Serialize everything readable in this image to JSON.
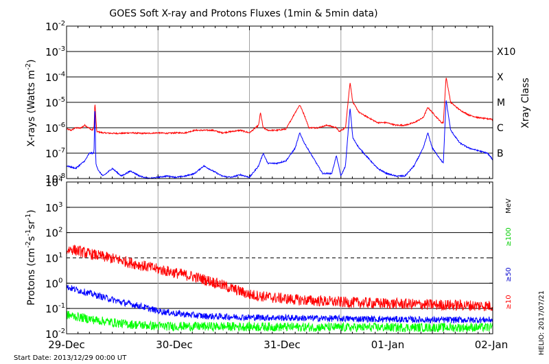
{
  "chart_data": [
    {
      "type": "line",
      "title": "GOES Soft X-ray and Protons Fluxes   (1min & 5min data)",
      "ylabel_main": "X-rays (Watts m",
      "ylabel_exp": "-2",
      "ylabel_close": ")",
      "yscale": "log",
      "ylim_exp": [
        -8,
        -2
      ],
      "yticks": [
        {
          "base": "10",
          "exp": "-8"
        },
        {
          "base": "10",
          "exp": "-7"
        },
        {
          "base": "10",
          "exp": "-6"
        },
        {
          "base": "10",
          "exp": "-5"
        },
        {
          "base": "10",
          "exp": "-4"
        },
        {
          "base": "10",
          "exp": "-3"
        },
        {
          "base": "10",
          "exp": "-2"
        }
      ],
      "right_axis_title": "Xray Class",
      "classes": [
        {
          "label": "B",
          "exp": -7
        },
        {
          "label": "C",
          "exp": -6
        },
        {
          "label": "M",
          "exp": -5
        },
        {
          "label": "X",
          "exp": -4
        },
        {
          "label": "X10",
          "exp": -3
        }
      ],
      "grid": "horizontal at each decade, vertical at day boundaries",
      "series": [
        {
          "color": "#ff0000",
          "points": [
            [
              0.0,
              -6.05
            ],
            [
              0.05,
              -6.1
            ],
            [
              0.1,
              -6.0
            ],
            [
              0.15,
              -6.02
            ],
            [
              0.2,
              -5.9
            ],
            [
              0.24,
              -6.0
            ],
            [
              0.28,
              -6.1
            ],
            [
              0.3,
              -6.0
            ],
            [
              0.31,
              -5.0
            ],
            [
              0.32,
              -5.6
            ],
            [
              0.33,
              -6.15
            ],
            [
              0.4,
              -6.2
            ],
            [
              0.5,
              -6.22
            ],
            [
              0.6,
              -6.22
            ],
            [
              0.7,
              -6.2
            ],
            [
              0.8,
              -6.22
            ],
            [
              0.9,
              -6.22
            ],
            [
              1.0,
              -6.2
            ],
            [
              1.1,
              -6.22
            ],
            [
              1.2,
              -6.2
            ],
            [
              1.3,
              -6.2
            ],
            [
              1.4,
              -6.1
            ],
            [
              1.5,
              -6.1
            ],
            [
              1.6,
              -6.1
            ],
            [
              1.7,
              -6.2
            ],
            [
              1.8,
              -6.15
            ],
            [
              1.9,
              -6.1
            ],
            [
              2.0,
              -6.2
            ],
            [
              2.1,
              -5.9
            ],
            [
              2.12,
              -5.4
            ],
            [
              2.15,
              -6.0
            ],
            [
              2.2,
              -6.1
            ],
            [
              2.3,
              -6.1
            ],
            [
              2.4,
              -6.05
            ],
            [
              2.5,
              -5.4
            ],
            [
              2.55,
              -5.1
            ],
            [
              2.6,
              -5.5
            ],
            [
              2.65,
              -6.0
            ],
            [
              2.75,
              -6.0
            ],
            [
              2.85,
              -5.9
            ],
            [
              2.95,
              -6.0
            ],
            [
              2.98,
              -6.15
            ],
            [
              3.05,
              -6.0
            ],
            [
              3.1,
              -4.2
            ],
            [
              3.13,
              -5.0
            ],
            [
              3.2,
              -5.4
            ],
            [
              3.3,
              -5.6
            ],
            [
              3.4,
              -5.8
            ],
            [
              3.5,
              -5.8
            ],
            [
              3.6,
              -5.9
            ],
            [
              3.7,
              -5.9
            ],
            [
              3.8,
              -5.8
            ],
            [
              3.9,
              -5.6
            ],
            [
              3.95,
              -5.2
            ],
            [
              4.0,
              -5.4
            ],
            [
              4.1,
              -5.8
            ],
            [
              4.12,
              -5.8
            ],
            [
              4.15,
              -4.0
            ],
            [
              4.2,
              -5.0
            ],
            [
              4.3,
              -5.3
            ],
            [
              4.4,
              -5.5
            ],
            [
              4.5,
              -5.6
            ],
            [
              4.6,
              -5.65
            ],
            [
              4.65,
              -5.65
            ],
            [
              4.66,
              -5.75
            ]
          ]
        },
        {
          "color": "#0000ff",
          "points": [
            [
              0.0,
              -7.5
            ],
            [
              0.1,
              -7.6
            ],
            [
              0.2,
              -7.3
            ],
            [
              0.25,
              -7.0
            ],
            [
              0.3,
              -7.0
            ],
            [
              0.31,
              -5.0
            ],
            [
              0.32,
              -7.4
            ],
            [
              0.35,
              -7.7
            ],
            [
              0.4,
              -7.9
            ],
            [
              0.5,
              -7.6
            ],
            [
              0.6,
              -7.9
            ],
            [
              0.7,
              -7.7
            ],
            [
              0.8,
              -7.9
            ],
            [
              0.9,
              -8.0
            ],
            [
              1.0,
              -7.95
            ],
            [
              1.1,
              -7.9
            ],
            [
              1.2,
              -7.95
            ],
            [
              1.3,
              -7.9
            ],
            [
              1.4,
              -7.8
            ],
            [
              1.5,
              -7.5
            ],
            [
              1.6,
              -7.7
            ],
            [
              1.7,
              -7.9
            ],
            [
              1.8,
              -7.95
            ],
            [
              1.9,
              -7.85
            ],
            [
              2.0,
              -7.95
            ],
            [
              2.1,
              -7.5
            ],
            [
              2.15,
              -7.0
            ],
            [
              2.2,
              -7.4
            ],
            [
              2.3,
              -7.4
            ],
            [
              2.4,
              -7.3
            ],
            [
              2.5,
              -6.8
            ],
            [
              2.55,
              -6.2
            ],
            [
              2.6,
              -6.6
            ],
            [
              2.7,
              -7.2
            ],
            [
              2.8,
              -7.8
            ],
            [
              2.9,
              -7.8
            ],
            [
              2.95,
              -7.1
            ],
            [
              3.0,
              -7.9
            ],
            [
              3.05,
              -7.5
            ],
            [
              3.1,
              -5.2
            ],
            [
              3.13,
              -6.4
            ],
            [
              3.2,
              -6.8
            ],
            [
              3.3,
              -7.2
            ],
            [
              3.4,
              -7.6
            ],
            [
              3.5,
              -7.8
            ],
            [
              3.6,
              -7.9
            ],
            [
              3.7,
              -7.9
            ],
            [
              3.8,
              -7.5
            ],
            [
              3.9,
              -6.8
            ],
            [
              3.95,
              -6.2
            ],
            [
              4.0,
              -6.8
            ],
            [
              4.1,
              -7.3
            ],
            [
              4.12,
              -7.4
            ],
            [
              4.15,
              -4.9
            ],
            [
              4.2,
              -6.1
            ],
            [
              4.3,
              -6.6
            ],
            [
              4.4,
              -6.8
            ],
            [
              4.5,
              -6.9
            ],
            [
              4.6,
              -7.0
            ],
            [
              4.65,
              -7.2
            ],
            [
              4.66,
              -7.3
            ]
          ]
        }
      ]
    },
    {
      "type": "line",
      "ylabel_main": "Protons (cm",
      "ylabel_e1": "-2",
      "ylabel_mid1": "s",
      "ylabel_e2": "-1",
      "ylabel_mid2": "sr",
      "ylabel_e3": "-1",
      "ylabel_close": ")",
      "yscale": "log",
      "ylim_exp": [
        -2,
        4
      ],
      "yticks": [
        {
          "base": "10",
          "exp": "-2"
        },
        {
          "base": "10",
          "exp": "-1"
        },
        {
          "base": "10",
          "exp": "0"
        },
        {
          "base": "10",
          "exp": "1"
        },
        {
          "base": "10",
          "exp": "2"
        },
        {
          "base": "10",
          "exp": "3"
        },
        {
          "base": "10",
          "exp": "4"
        }
      ],
      "right_unit": "MeV",
      "legend": [
        {
          "label": "≥100",
          "color": "#00cc00"
        },
        {
          "label": "≥50",
          "color": "#0000cc"
        },
        {
          "label": "≥10",
          "color": "#ff0000"
        }
      ],
      "threshold_exp": 1,
      "series": [
        {
          "color": "#ff0000",
          "points": [
            [
              0.0,
              1.3
            ],
            [
              0.05,
              1.35
            ],
            [
              0.2,
              1.2
            ],
            [
              0.4,
              1.05
            ],
            [
              0.6,
              0.9
            ],
            [
              0.8,
              0.72
            ],
            [
              1.0,
              0.55
            ],
            [
              1.2,
              0.4
            ],
            [
              1.4,
              0.25
            ],
            [
              1.6,
              0.05
            ],
            [
              1.8,
              -0.2
            ],
            [
              2.0,
              -0.45
            ],
            [
              2.2,
              -0.55
            ],
            [
              2.5,
              -0.65
            ],
            [
              3.0,
              -0.75
            ],
            [
              3.5,
              -0.8
            ],
            [
              4.0,
              -0.85
            ],
            [
              4.66,
              -0.9
            ]
          ],
          "noise": 0.22
        },
        {
          "color": "#0000ff",
          "points": [
            [
              0.0,
              -0.15
            ],
            [
              0.2,
              -0.35
            ],
            [
              0.4,
              -0.55
            ],
            [
              0.6,
              -0.75
            ],
            [
              0.8,
              -0.9
            ],
            [
              1.0,
              -1.1
            ],
            [
              1.2,
              -1.2
            ],
            [
              1.5,
              -1.3
            ],
            [
              2.0,
              -1.35
            ],
            [
              3.0,
              -1.4
            ],
            [
              4.0,
              -1.45
            ],
            [
              4.66,
              -1.45
            ]
          ],
          "noise": 0.13
        },
        {
          "color": "#00ff00",
          "points": [
            [
              0.0,
              -1.25
            ],
            [
              0.3,
              -1.45
            ],
            [
              0.6,
              -1.6
            ],
            [
              1.0,
              -1.7
            ],
            [
              2.0,
              -1.72
            ],
            [
              3.0,
              -1.75
            ],
            [
              4.66,
              -1.75
            ]
          ],
          "noise": 0.18
        }
      ]
    }
  ],
  "x_axis": {
    "labels": [
      "29-Dec",
      "30-Dec",
      "31-Dec",
      "01-Jan",
      "02-Jan"
    ],
    "range_days": [
      0,
      4.66
    ]
  },
  "footer": {
    "start_date": "Start Date: 2013/12/29 00:00 UT",
    "side_stamp": "HELIO: 2017/07/21"
  },
  "colors": {
    "frame": "#000000",
    "grid_h": "#000000",
    "grid_v": "#a0a0a0"
  }
}
